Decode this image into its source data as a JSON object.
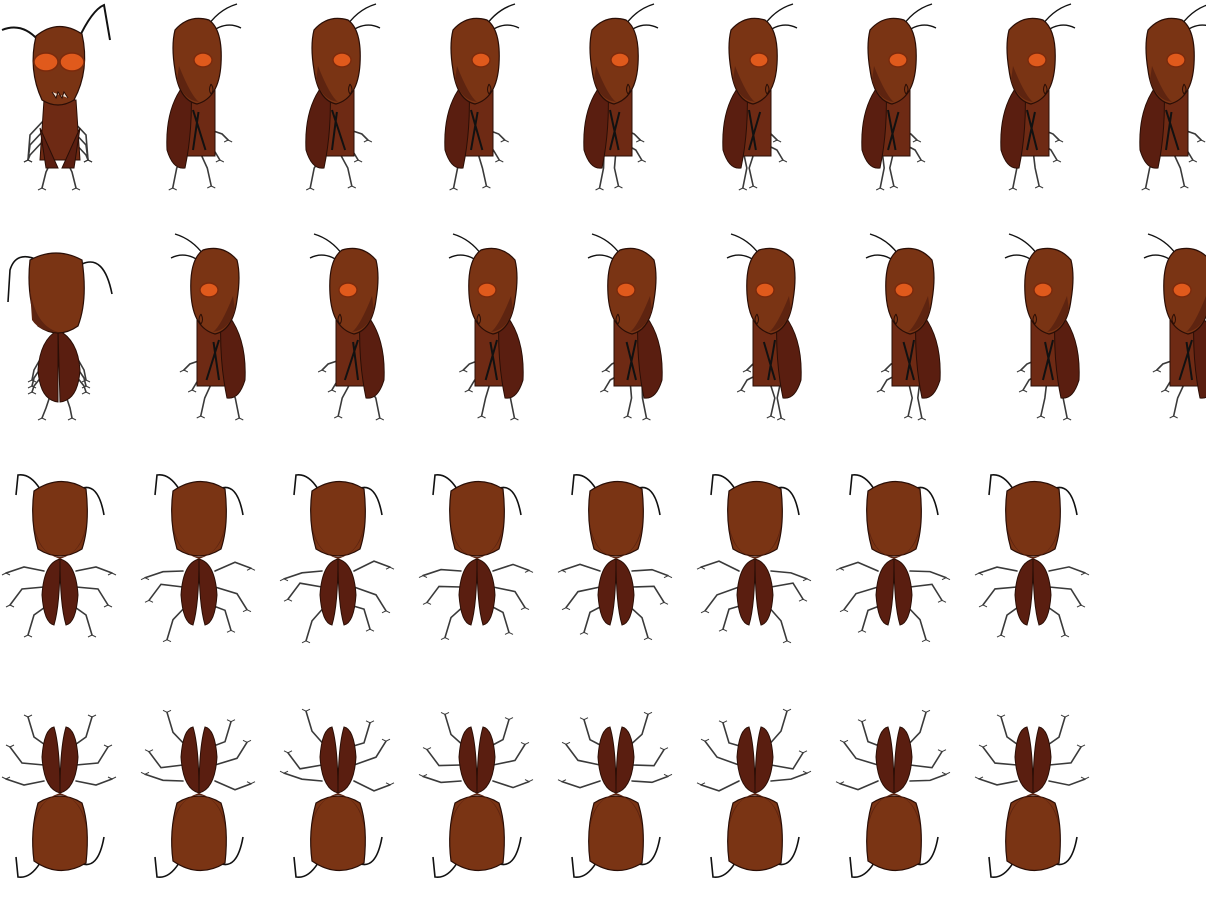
{
  "sprite_sheet": {
    "palette": {
      "head": "#7a3414",
      "head_shade": "#5e2410",
      "body": "#6e2a14",
      "wing": "#5a1e10",
      "eye": "#e05a1c",
      "eye_ring": "#7a2a0c",
      "outline": "#2a0e06",
      "leg": "#3a3a3a",
      "antenna": "#111111"
    },
    "rows": [
      {
        "name": "walk-right",
        "view": "side-right",
        "frames": 9
      },
      {
        "name": "walk-left",
        "view": "side-left",
        "frames": 9
      },
      {
        "name": "walk-down",
        "view": "front-top",
        "frames": 8
      },
      {
        "name": "walk-up",
        "view": "back-top",
        "frames": 8
      }
    ],
    "special_first_frames": [
      {
        "row": "walk-right",
        "view": "front-face"
      },
      {
        "row": "walk-left",
        "view": "back-standing"
      }
    ]
  }
}
